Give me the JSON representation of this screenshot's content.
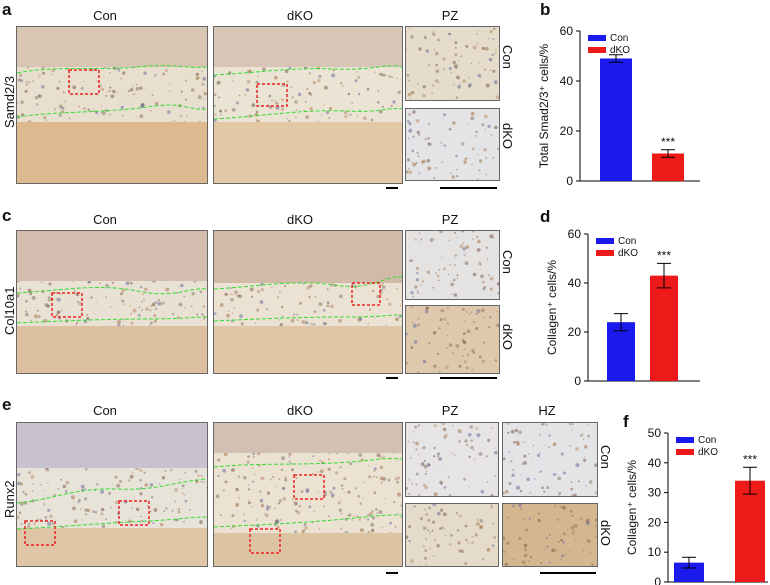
{
  "panels": {
    "a": {
      "letter": "a",
      "row_label": "Samd2/3",
      "col_con": "Con",
      "col_dko": "dKO",
      "col_pz": "PZ",
      "side_con": "Con",
      "side_dko": "dKO"
    },
    "c": {
      "letter": "c",
      "row_label": "Col10a1",
      "col_con": "Con",
      "col_dko": "dKO",
      "col_pz": "PZ",
      "side_con": "Con",
      "side_dko": "dKO"
    },
    "e": {
      "letter": "e",
      "row_label": "Runx2",
      "col_con": "Con",
      "col_dko": "dKO",
      "col_pz": "PZ",
      "col_hz": "HZ",
      "side_con": "Con",
      "side_dko": "dKO"
    },
    "b": {
      "letter": "b"
    },
    "d": {
      "letter": "d"
    },
    "f": {
      "letter": "f"
    }
  },
  "colors": {
    "con": "#1a1aee",
    "dko": "#ee1a1a",
    "zone_line": "#33dd33",
    "roi_box": "#ee2222",
    "tissue_bg": "#e9e1d3"
  },
  "chart_data": [
    {
      "id": "b",
      "type": "bar",
      "categories": [
        "Con",
        "dKO"
      ],
      "values": [
        49,
        11
      ],
      "errors": [
        1.5,
        1.5
      ],
      "ylabel": "Total Smad2/3⁺ cells/%",
      "ylim": [
        0,
        60
      ],
      "yticks": [
        "0",
        "20",
        "40",
        "60"
      ],
      "significance": "***",
      "legend": [
        "Con",
        "dKO"
      ],
      "legend_position": "top-left"
    },
    {
      "id": "d",
      "type": "bar",
      "categories": [
        "Con",
        "dKO"
      ],
      "values": [
        24,
        43
      ],
      "errors": [
        3.5,
        5
      ],
      "ylabel": "Collagen⁺ cells/%",
      "ylim": [
        0,
        60
      ],
      "yticks": [
        "0",
        "20",
        "40",
        "60"
      ],
      "significance": "***",
      "legend": [
        "Con",
        "dKO"
      ],
      "legend_position": "top-left"
    },
    {
      "id": "f",
      "type": "bar",
      "categories": [
        "Con",
        "dKO"
      ],
      "values": [
        6.5,
        34
      ],
      "errors": [
        1.8,
        4.5
      ],
      "ylabel": "Collagen⁺ cells/%",
      "ylim": [
        0,
        50
      ],
      "yticks": [
        "0",
        "10",
        "20",
        "30",
        "40",
        "50"
      ],
      "significance": "***",
      "legend": [
        "Con",
        "dKO"
      ],
      "legend_position": "top-left"
    }
  ]
}
